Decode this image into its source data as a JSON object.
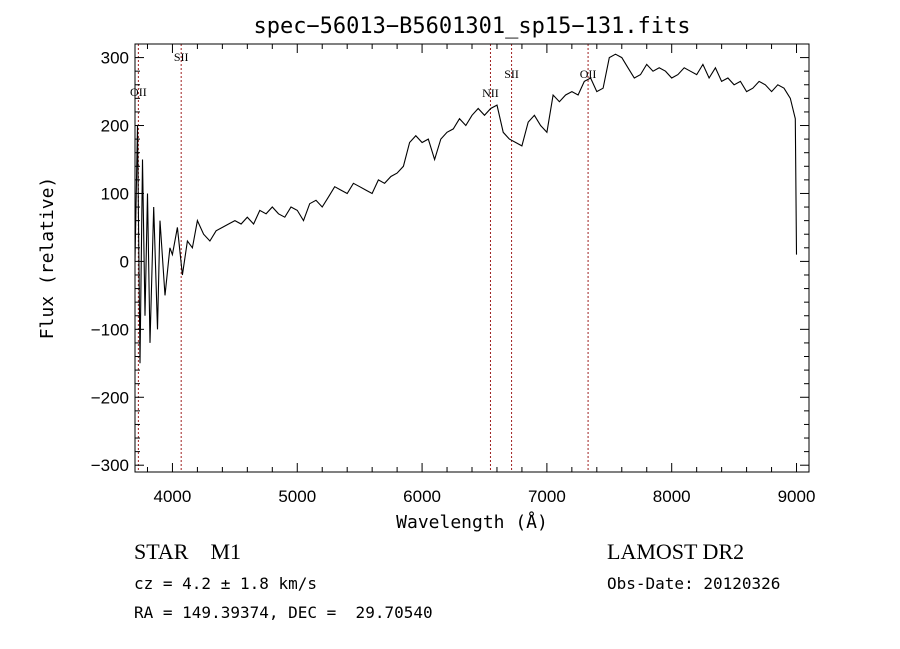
{
  "chart_data": {
    "type": "line",
    "title": "spec−56013−B5601301_sp15−131.fits",
    "xlabel": "Wavelength (Å)",
    "ylabel": "Flux (relative)",
    "xlim": [
      3700,
      9100
    ],
    "ylim": [
      -310,
      320
    ],
    "x_ticks": [
      4000,
      5000,
      6000,
      7000,
      8000,
      9000
    ],
    "y_ticks": [
      -300,
      -200,
      -100,
      0,
      100,
      200,
      300
    ],
    "x_tick_labels": [
      "4000",
      "5000",
      "6000",
      "7000",
      "8000",
      "9000"
    ],
    "y_tick_labels": [
      "−300",
      "−200",
      "−100",
      "0",
      "100",
      "200",
      "300"
    ],
    "grid": false,
    "series": [
      {
        "x": [
          3700,
          3720,
          3740,
          3760,
          3780,
          3800,
          3820,
          3850,
          3880,
          3900,
          3940,
          3980,
          4000,
          4040,
          4080,
          4120,
          4160,
          4200,
          4250,
          4300,
          4350,
          4400,
          4450,
          4500,
          4550,
          4600,
          4650,
          4700,
          4750,
          4800,
          4850,
          4900,
          4950,
          5000,
          5050,
          5100,
          5150,
          5200,
          5250,
          5300,
          5350,
          5400,
          5450,
          5500,
          5550,
          5600,
          5650,
          5700,
          5750,
          5800,
          5850,
          5900,
          5950,
          6000,
          6050,
          6100,
          6150,
          6200,
          6250,
          6300,
          6350,
          6400,
          6450,
          6500,
          6550,
          6600,
          6650,
          6700,
          6750,
          6800,
          6850,
          6900,
          6950,
          7000,
          7050,
          7100,
          7150,
          7200,
          7250,
          7300,
          7350,
          7400,
          7450,
          7500,
          7550,
          7600,
          7650,
          7700,
          7750,
          7800,
          7850,
          7900,
          7950,
          8000,
          8050,
          8100,
          8150,
          8200,
          8250,
          8300,
          8350,
          8400,
          8450,
          8500,
          8550,
          8600,
          8650,
          8700,
          8750,
          8800,
          8850,
          8900,
          8950,
          8990,
          9000
        ],
        "y": [
          0,
          200,
          -150,
          150,
          -80,
          100,
          -120,
          80,
          -100,
          60,
          -50,
          20,
          10,
          50,
          -20,
          30,
          20,
          60,
          40,
          30,
          45,
          50,
          55,
          60,
          55,
          65,
          55,
          75,
          70,
          80,
          70,
          65,
          80,
          75,
          60,
          85,
          90,
          80,
          95,
          110,
          105,
          100,
          115,
          110,
          105,
          100,
          120,
          115,
          125,
          130,
          140,
          175,
          185,
          175,
          180,
          150,
          180,
          190,
          195,
          210,
          200,
          215,
          225,
          215,
          225,
          230,
          190,
          180,
          175,
          170,
          205,
          215,
          200,
          190,
          245,
          235,
          245,
          250,
          245,
          265,
          270,
          250,
          255,
          300,
          305,
          300,
          285,
          270,
          275,
          290,
          280,
          285,
          280,
          270,
          275,
          285,
          280,
          275,
          290,
          270,
          285,
          265,
          270,
          260,
          265,
          250,
          255,
          265,
          260,
          250,
          260,
          255,
          240,
          210,
          10
        ]
      }
    ],
    "lines": [
      {
        "label": "OII",
        "x": 3727
      },
      {
        "label": "SII",
        "x": 4070
      },
      {
        "label": "NII",
        "x": 6548
      },
      {
        "label": "SII",
        "x": 6717
      },
      {
        "label": "OII",
        "x": 7330
      }
    ],
    "line_color": "#a02020"
  },
  "info": {
    "left1": "STAR    M1",
    "left2": "cz = 4.2 ± 1.8 km/s",
    "left3": "RA = 149.39374, DEC =  29.70540",
    "right1": "LAMOST DR2",
    "right2": "Obs-Date: 20120326"
  }
}
